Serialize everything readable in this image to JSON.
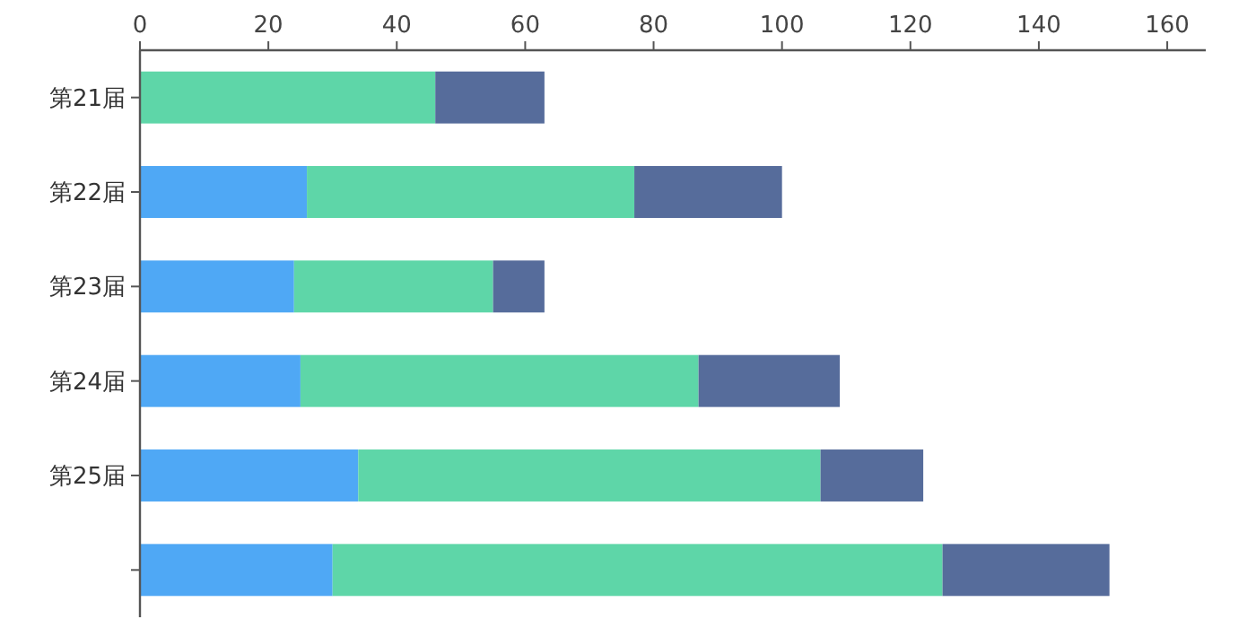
{
  "chart_data": {
    "type": "bar",
    "orientation": "horizontal",
    "stacked": true,
    "categories": [
      "第21届",
      "第22届",
      "第23届",
      "第24届",
      "第25届",
      null
    ],
    "series": [
      {
        "color": "#4fa8f5",
        "values": [
          null,
          26,
          24,
          25,
          34,
          30
        ]
      },
      {
        "color": "#5ed6a8",
        "values": [
          46,
          51,
          31,
          62,
          72,
          95
        ]
      },
      {
        "color": "#566c9b",
        "values": [
          17,
          23,
          8,
          22,
          16,
          26
        ]
      }
    ],
    "xlim": [
      0,
      166
    ],
    "xticks": [
      0,
      20,
      40,
      60,
      80,
      100,
      120,
      140,
      160
    ],
    "grid": false
  }
}
